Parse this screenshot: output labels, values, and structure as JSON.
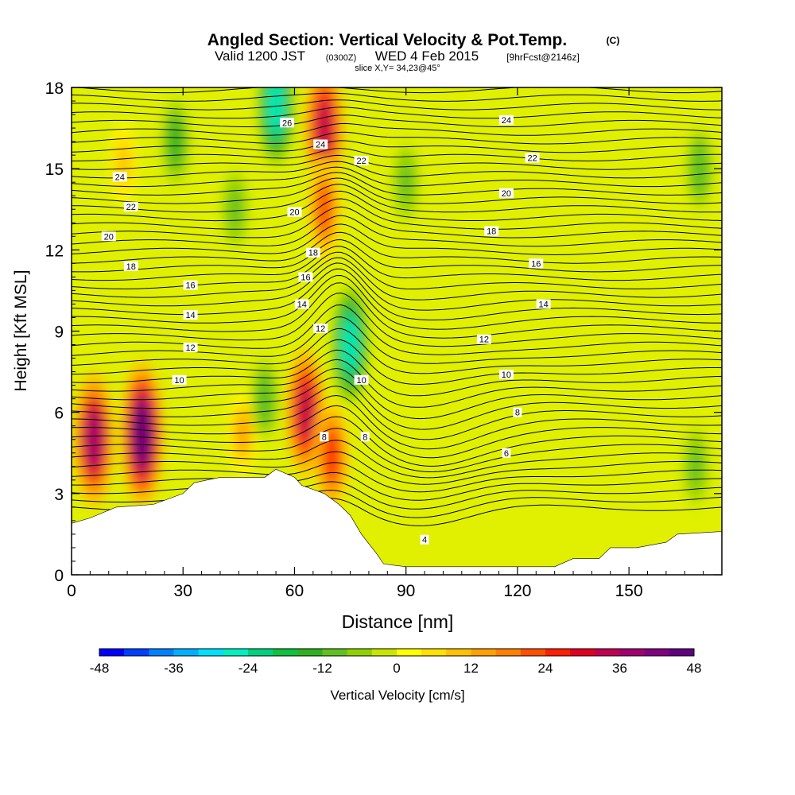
{
  "chart_data": {
    "type": "heatmap",
    "title": "Angled Section: Vertical Velocity & Pot.Temp.",
    "title_suffix": "(C)",
    "subtitle_main": "Valid 1200 JST",
    "subtitle_utc": "(0300Z)",
    "subtitle_date": "WED 4 Feb 2015",
    "subtitle_fcst": "[9hrFcst@2146z]",
    "slice_label": "slice X,Y= 34,23@45°",
    "xlabel": "Distance [nm]",
    "ylabel": "Height [Kft MSL]",
    "xlim": [
      0,
      175
    ],
    "ylim": [
      0,
      18
    ],
    "xticks": [
      "0",
      "30",
      "60",
      "90",
      "120",
      "150"
    ],
    "yticks": [
      "0",
      "3",
      "6",
      "9",
      "12",
      "15",
      "18"
    ],
    "colorbar": {
      "label": "Vertical Velocity [cm/s]",
      "tick_labels": [
        "-48",
        "-36",
        "-24",
        "-12",
        "0",
        "12",
        "24",
        "36",
        "48"
      ],
      "range": [
        -48,
        48
      ],
      "colors": [
        "#0000ff",
        "#0040ff",
        "#0080ff",
        "#00b0ff",
        "#00e0ff",
        "#00f0c0",
        "#00d080",
        "#10c040",
        "#30b020",
        "#60c020",
        "#90d000",
        "#c8e600",
        "#ffff00",
        "#ffe000",
        "#ffc000",
        "#ffa000",
        "#ff8000",
        "#ff5000",
        "#ff2000",
        "#e00020",
        "#c00050",
        "#a00070",
        "#800080",
        "#600080"
      ]
    },
    "terrain_height_kft": [
      [
        0,
        1.9
      ],
      [
        5,
        2.1
      ],
      [
        12,
        2.5
      ],
      [
        22,
        2.6
      ],
      [
        30,
        3.0
      ],
      [
        33,
        3.4
      ],
      [
        40,
        3.6
      ],
      [
        52,
        3.6
      ],
      [
        55,
        3.9
      ],
      [
        60,
        3.6
      ],
      [
        62,
        3.3
      ],
      [
        68,
        3.0
      ],
      [
        72,
        2.6
      ],
      [
        75,
        2.2
      ],
      [
        78,
        1.5
      ],
      [
        82,
        0.8
      ],
      [
        84,
        0.4
      ],
      [
        90,
        0.3
      ],
      [
        130,
        0.3
      ],
      [
        135,
        0.6
      ],
      [
        142,
        0.6
      ],
      [
        145,
        1.0
      ],
      [
        152,
        1.0
      ],
      [
        160,
        1.2
      ],
      [
        163,
        1.5
      ],
      [
        175,
        1.6
      ]
    ],
    "updraft_cells": [
      {
        "x": 6,
        "y": 5.0,
        "w": 38
      },
      {
        "x": 19,
        "y": 5.2,
        "w": 44
      },
      {
        "x": 63,
        "y": 6.0,
        "w": 34
      },
      {
        "x": 68,
        "y": 16.5,
        "w": 34
      },
      {
        "x": 68,
        "y": 13.5,
        "w": 22
      },
      {
        "x": 70,
        "y": 4.4,
        "w": 26
      },
      {
        "x": 46,
        "y": 5.2,
        "w": 12
      },
      {
        "x": 14,
        "y": 15.2,
        "w": 10
      }
    ],
    "downdraft_cells": [
      {
        "x": 55,
        "y": 17.3,
        "w": -28
      },
      {
        "x": 75,
        "y": 8.5,
        "w": -28
      },
      {
        "x": 28,
        "y": 16.0,
        "w": -16
      },
      {
        "x": 44,
        "y": 13.5,
        "w": -10
      },
      {
        "x": 90,
        "y": 14.5,
        "w": -10
      },
      {
        "x": 52,
        "y": 6.5,
        "w": -12
      },
      {
        "x": 169,
        "y": 15.0,
        "w": -12
      },
      {
        "x": 168,
        "y": 4.0,
        "w": -10
      }
    ],
    "pot_temp_contour_labels": [
      {
        "text": "26",
        "x": 58,
        "y": 16.7
      },
      {
        "text": "24",
        "x": 67,
        "y": 15.9
      },
      {
        "text": "22",
        "x": 78,
        "y": 15.3
      },
      {
        "text": "20",
        "x": 60,
        "y": 13.4
      },
      {
        "text": "18",
        "x": 65,
        "y": 11.9
      },
      {
        "text": "16",
        "x": 63,
        "y": 11.0
      },
      {
        "text": "14",
        "x": 62,
        "y": 10.0
      },
      {
        "text": "12",
        "x": 67,
        "y": 9.1
      },
      {
        "text": "10",
        "x": 78,
        "y": 7.2
      },
      {
        "text": "8",
        "x": 68,
        "y": 5.1
      },
      {
        "text": "8",
        "x": 79,
        "y": 5.1
      },
      {
        "text": "24",
        "x": 13,
        "y": 14.7
      },
      {
        "text": "22",
        "x": 16,
        "y": 13.6
      },
      {
        "text": "20",
        "x": 10,
        "y": 12.5
      },
      {
        "text": "18",
        "x": 16,
        "y": 11.4
      },
      {
        "text": "16",
        "x": 32,
        "y": 10.7
      },
      {
        "text": "14",
        "x": 32,
        "y": 9.6
      },
      {
        "text": "12",
        "x": 32,
        "y": 8.4
      },
      {
        "text": "10",
        "x": 29,
        "y": 7.2
      },
      {
        "text": "24",
        "x": 117,
        "y": 16.8
      },
      {
        "text": "22",
        "x": 124,
        "y": 15.4
      },
      {
        "text": "20",
        "x": 117,
        "y": 14.1
      },
      {
        "text": "18",
        "x": 113,
        "y": 12.7
      },
      {
        "text": "16",
        "x": 125,
        "y": 11.5
      },
      {
        "text": "14",
        "x": 127,
        "y": 10.0
      },
      {
        "text": "12",
        "x": 111,
        "y": 8.7
      },
      {
        "text": "10",
        "x": 117,
        "y": 7.4
      },
      {
        "text": "8",
        "x": 120,
        "y": 6.0
      },
      {
        "text": "6",
        "x": 117,
        "y": 4.5
      },
      {
        "text": "4",
        "x": 95,
        "y": 1.3
      }
    ],
    "pot_temp_levels": [
      4,
      6,
      8,
      10,
      12,
      14,
      16,
      18,
      20,
      22,
      24,
      26
    ]
  }
}
